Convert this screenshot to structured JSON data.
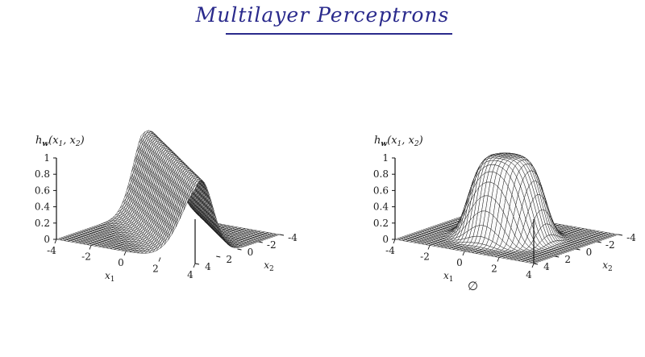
{
  "title": "Multilayer Perceptrons",
  "null_mark": "∅",
  "panels": [
    {
      "shape": "ridge",
      "ylabel": "h_w(x_1, x_2)",
      "z_ticks": [
        "0",
        "0.2",
        "0.4",
        "0.6",
        "0.8",
        "1"
      ],
      "x1_ticks": [
        "-4",
        "-2",
        "0",
        "2",
        "4"
      ],
      "x2_ticks": [
        "-4",
        "-2",
        "0",
        "2",
        "4"
      ],
      "x1_label": "x_1",
      "x2_label": "x_2"
    },
    {
      "shape": "bump",
      "ylabel": "h_w(x_1, x_2)",
      "z_ticks": [
        "0",
        "0.2",
        "0.4",
        "0.6",
        "0.8",
        "1"
      ],
      "x1_ticks": [
        "-4",
        "-2",
        "0",
        "2",
        "4"
      ],
      "x2_ticks": [
        "-4",
        "-2",
        "0",
        "2",
        "4"
      ],
      "x1_label": "x_1",
      "x2_label": "x_2"
    }
  ]
}
